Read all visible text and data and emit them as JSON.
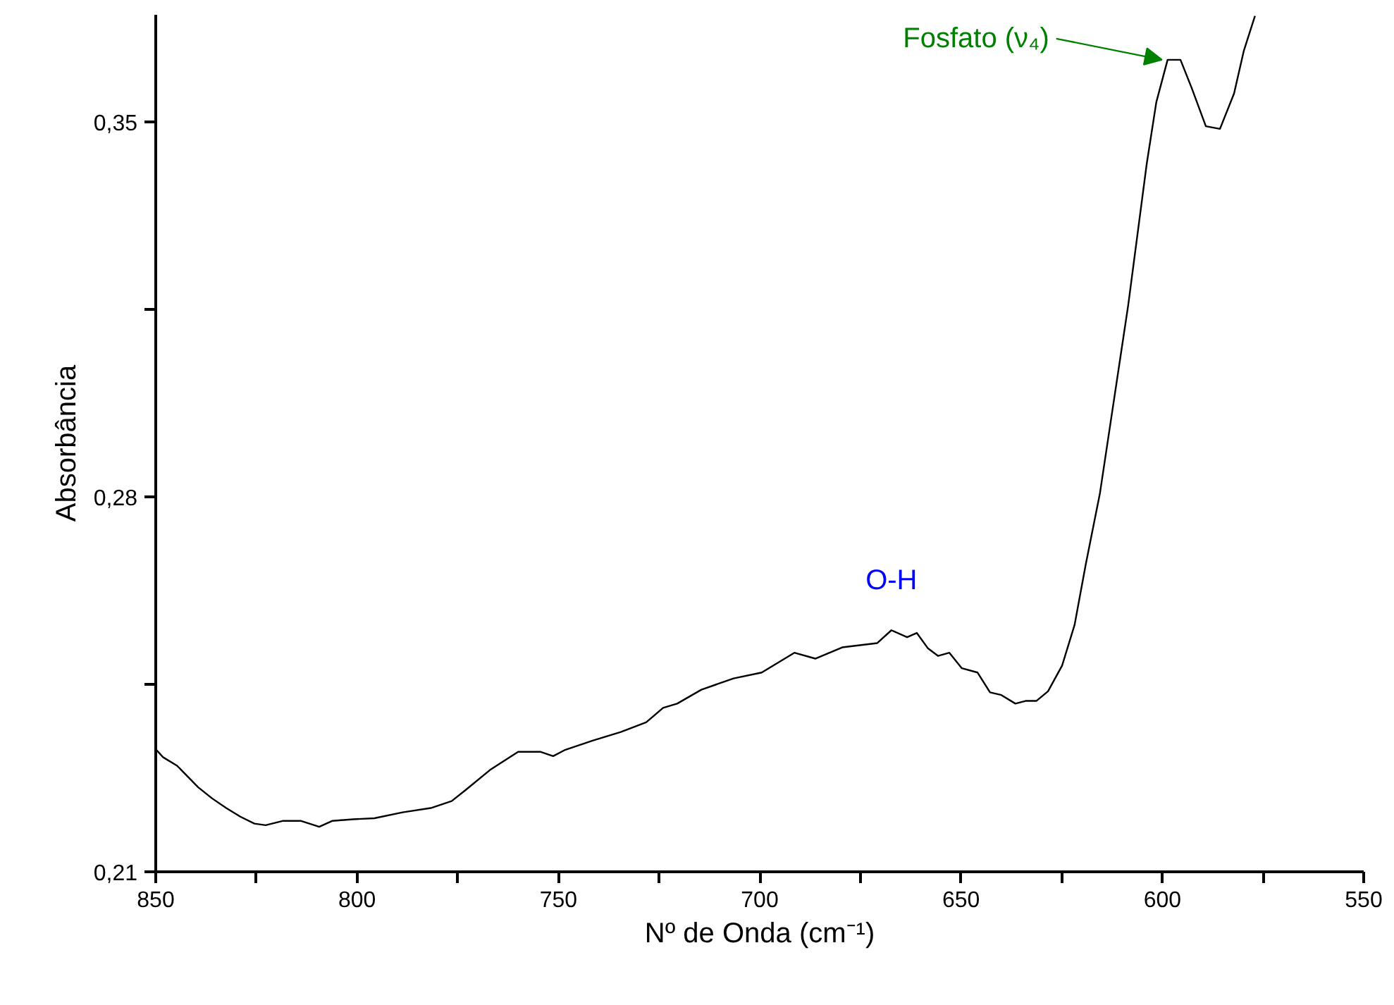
{
  "chart_data": {
    "type": "line",
    "xlabel": "Nº de Onda (cm⁻¹)",
    "ylabel": "Absorbância",
    "x": [
      850,
      848.2,
      844.7,
      839.5,
      836.0,
      832.5,
      829.0,
      825.5,
      822.7,
      818.5,
      813.9,
      809.4,
      806.2,
      801.0,
      795.7,
      788.7,
      781.7,
      776.5,
      773.0,
      767.0,
      760.0,
      754.4,
      751.3,
      748.5,
      741.5,
      734.5,
      728.2,
      724.0,
      720.5,
      714.5,
      706.5,
      699.5,
      691.4,
      686.2,
      679.5,
      670.8,
      667.3,
      663.4,
      661.0,
      658.2,
      655.7,
      652.9,
      649.8,
      645.9,
      642.8,
      640.0,
      636.5,
      634.0,
      631.3,
      628.4,
      624.9,
      621.8,
      619.0,
      615.5,
      608.5,
      603.9,
      601.5,
      598.7,
      595.5,
      592.7,
      589.2,
      585.7,
      582.2,
      579.8,
      577.0
    ],
    "series": [
      {
        "color": "#000000",
        "values": [
          0.2329,
          0.2314,
          0.2298,
          0.2258,
          0.2237,
          0.2219,
          0.2203,
          0.219,
          0.2187,
          0.2195,
          0.2195,
          0.2184,
          0.2195,
          0.2198,
          0.22,
          0.2211,
          0.2219,
          0.2232,
          0.2253,
          0.229,
          0.2324,
          0.2324,
          0.2316,
          0.2327,
          0.2345,
          0.2361,
          0.2379,
          0.2406,
          0.2414,
          0.244,
          0.2461,
          0.2472,
          0.2509,
          0.2498,
          0.2519,
          0.2527,
          0.2551,
          0.2538,
          0.2546,
          0.2517,
          0.2503,
          0.2509,
          0.248,
          0.2472,
          0.2435,
          0.243,
          0.2414,
          0.2419,
          0.2419,
          0.2437,
          0.2485,
          0.2561,
          0.2675,
          0.2807,
          0.3157,
          0.3421,
          0.3537,
          0.3616,
          0.3616,
          0.3563,
          0.3492,
          0.3487,
          0.3553,
          0.3632,
          0.3698
        ]
      }
    ],
    "xlim": [
      850,
      550
    ],
    "xticks": [
      850,
      {
        "value": 825,
        "label": null
      },
      800,
      {
        "value": 775,
        "label": null
      },
      750,
      {
        "value": 725,
        "label": null
      },
      700,
      {
        "value": 675,
        "label": null
      },
      650,
      {
        "value": 625,
        "label": null
      },
      600,
      {
        "value": 575,
        "label": null
      },
      550
    ],
    "ylim": [
      0.21,
      0.37
    ],
    "yticks": [
      {
        "value": 0.21,
        "label": "0,21"
      },
      {
        "value": 0.245,
        "label": null
      },
      {
        "value": 0.28,
        "label": "0,28"
      },
      {
        "value": 0.315,
        "label": null
      },
      {
        "value": 0.35,
        "label": "0,35"
      }
    ],
    "annotations": [
      {
        "text": "O-H",
        "x": 667.3,
        "y": 0.2551
      },
      {
        "text": "Fosfato (ν₄)",
        "x": 598.7,
        "y": 0.3616
      }
    ],
    "grid": false,
    "marker": "none",
    "line_style": "solid"
  }
}
